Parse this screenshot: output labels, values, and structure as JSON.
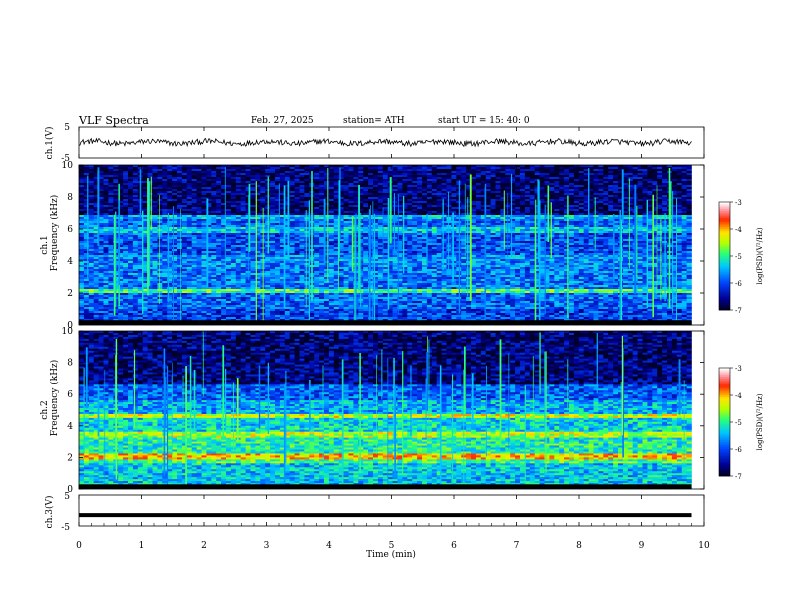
{
  "header": {
    "title": "VLF  Spectra",
    "date": "Feb. 27, 2025",
    "station": "station= ATH",
    "start_ut": "start  UT  =   15: 40: 0"
  },
  "chart_data": [
    {
      "id": "ch1-waveform",
      "type": "line",
      "ylabel": "ch.1(V)",
      "ylim": [
        -5,
        5
      ],
      "yticks": [
        "5",
        "-5"
      ],
      "xlim": [
        0,
        10
      ],
      "series": [
        {
          "color": "#000000",
          "baseline": 0,
          "noise_amplitude": 0.9
        }
      ]
    },
    {
      "id": "ch1-spectrogram",
      "type": "heatmap",
      "ylabel_top": "ch.1",
      "ylabel": "Frequency (kHz)",
      "ylim": [
        0,
        10
      ],
      "yticks": [
        "0",
        "2",
        "4",
        "6",
        "8",
        "10"
      ],
      "xlim": [
        0,
        9.8
      ],
      "colorbar": {
        "label": "log(PSD)(V²/Hz)",
        "range": [
          -7,
          -3
        ],
        "ticks": [
          "-3",
          "-4",
          "-5",
          "-6",
          "-7"
        ]
      },
      "bands": [
        {
          "f": [
            0.0,
            1.0
          ],
          "v": -6.1
        },
        {
          "f": [
            1.0,
            2.0
          ],
          "v": -5.9
        },
        {
          "f": [
            2.0,
            2.2
          ],
          "v": -4.9
        },
        {
          "f": [
            2.2,
            3.6
          ],
          "v": -5.8
        },
        {
          "f": [
            3.6,
            4.4
          ],
          "v": -5.7
        },
        {
          "f": [
            4.4,
            5.8
          ],
          "v": -6.0
        },
        {
          "f": [
            5.8,
            6.1
          ],
          "v": -5.4
        },
        {
          "f": [
            6.1,
            6.6
          ],
          "v": -5.9
        },
        {
          "f": [
            6.6,
            6.9
          ],
          "v": -5.5
        },
        {
          "f": [
            6.9,
            10.0
          ],
          "v": -6.7
        }
      ]
    },
    {
      "id": "ch2-spectrogram",
      "type": "heatmap",
      "ylabel_top": "ch.2",
      "ylabel": "Frequency (kHz)",
      "ylim": [
        0,
        10
      ],
      "yticks": [
        "0",
        "2",
        "4",
        "6",
        "8",
        "10"
      ],
      "xlim": [
        0,
        9.8
      ],
      "colorbar": {
        "label": "log(PSD)(V²/Hz)",
        "range": [
          -7,
          -3
        ],
        "ticks": [
          "-3",
          "-4",
          "-5",
          "-6",
          "-7"
        ]
      },
      "bands": [
        {
          "f": [
            0.0,
            1.6
          ],
          "v": -5.4
        },
        {
          "f": [
            1.6,
            1.9
          ],
          "v": -4.9
        },
        {
          "f": [
            1.9,
            2.2
          ],
          "v": -4.1
        },
        {
          "f": [
            2.2,
            3.2
          ],
          "v": -5.1
        },
        {
          "f": [
            3.2,
            3.6
          ],
          "v": -4.5
        },
        {
          "f": [
            3.6,
            4.5
          ],
          "v": -5.3
        },
        {
          "f": [
            4.5,
            4.7
          ],
          "v": -4.4
        },
        {
          "f": [
            4.7,
            5.6
          ],
          "v": -5.5
        },
        {
          "f": [
            5.6,
            6.6
          ],
          "v": -5.9
        },
        {
          "f": [
            6.6,
            10.0
          ],
          "v": -6.7
        }
      ]
    },
    {
      "id": "ch3-waveform",
      "type": "line",
      "ylabel": "ch.3(V)",
      "ylim": [
        -5,
        5
      ],
      "yticks": [
        "5",
        "-5"
      ],
      "xlim": [
        0,
        10
      ],
      "xlabel": "Time  (min)",
      "xticks": [
        "0",
        "1",
        "2",
        "3",
        "4",
        "5",
        "6",
        "7",
        "8",
        "9",
        "10"
      ],
      "series": [
        {
          "color": "#000000",
          "baseline": -1.5,
          "noise_amplitude": 0
        }
      ]
    }
  ]
}
